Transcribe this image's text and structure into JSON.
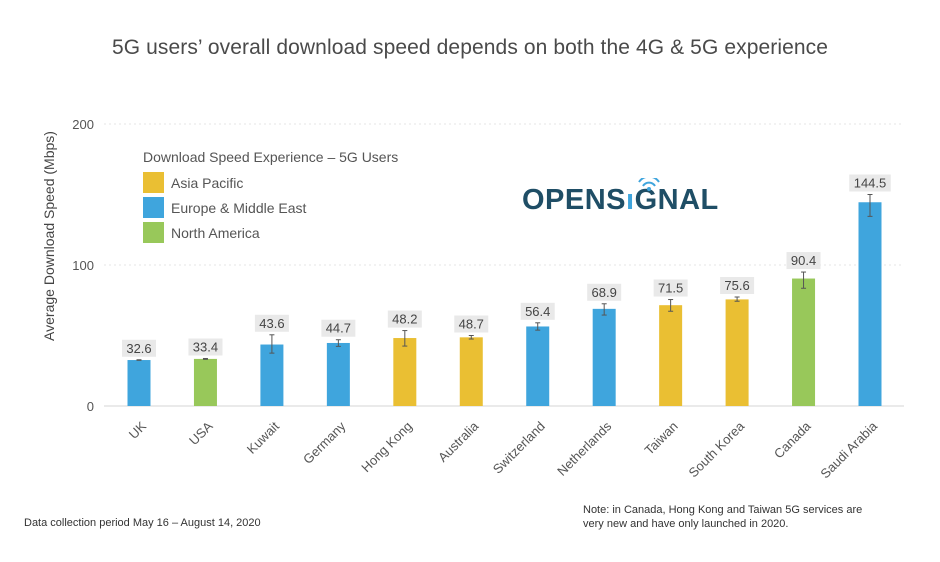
{
  "chart_data": {
    "type": "bar",
    "title": "5G users’ overall download speed depends on both the 4G & 5G experience",
    "xlabel": "",
    "ylabel": "Average Download Speed (Mbps)",
    "ylim": [
      0,
      200
    ],
    "yticks": [
      "0",
      "100",
      "200"
    ],
    "ytick_values": [
      0,
      100,
      200
    ],
    "grid": true,
    "categories": [
      "UK",
      "USA",
      "Kuwait",
      "Germany",
      "Hong Kong",
      "Australia",
      "Switzerland",
      "Netherlands",
      "Taiwan",
      "South Korea",
      "Canada",
      "Saudi Arabia"
    ],
    "values": [
      32.6,
      33.4,
      43.6,
      44.7,
      48.2,
      48.7,
      56.4,
      68.9,
      71.5,
      75.6,
      90.4,
      144.5
    ],
    "value_labels": [
      "32.6",
      "33.4",
      "43.6",
      "44.7",
      "48.2",
      "48.7",
      "56.4",
      "68.9",
      "71.5",
      "75.6",
      "90.4",
      "144.5"
    ],
    "error_low": [
      32.4,
      33.1,
      37.5,
      42.3,
      42.5,
      47.5,
      53.8,
      64.5,
      67.2,
      74.3,
      83.5,
      134.5
    ],
    "error_high": [
      32.8,
      33.7,
      50.5,
      47.0,
      53.5,
      50.0,
      59.0,
      72.5,
      75.5,
      77.3,
      95.0,
      150.0
    ],
    "regions": [
      "Europe & Middle East",
      "North America",
      "Europe & Middle East",
      "Europe & Middle East",
      "Asia Pacific",
      "Asia Pacific",
      "Europe & Middle East",
      "Europe & Middle East",
      "Asia Pacific",
      "Asia Pacific",
      "North America",
      "Europe & Middle East"
    ],
    "legend": {
      "title": "Download Speed Experience – 5G Users",
      "placement": "top-left",
      "entries": [
        {
          "name": "Asia Pacific",
          "color": "#eabf33"
        },
        {
          "name": "Europe & Middle East",
          "color": "#3fa5dd"
        },
        {
          "name": "North America",
          "color": "#98c85a"
        }
      ]
    }
  },
  "logo": {
    "text": "OPENSIGNAL",
    "color": "#1f4e66",
    "accent": "#3fa5dd"
  },
  "footer": {
    "left": "Data collection period May 16 – August 14, 2020",
    "right": "Note: in Canada, Hong Kong and Taiwan 5G services are very new and have only launched in 2020."
  }
}
